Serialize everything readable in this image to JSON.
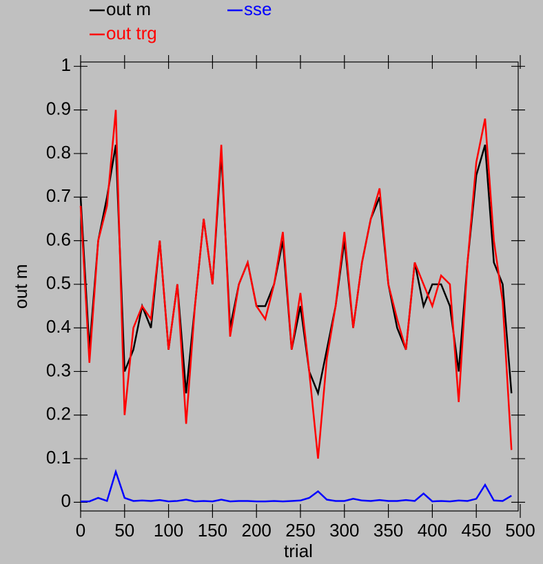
{
  "chart_data": {
    "type": "line",
    "x_label": "trial",
    "y_label": "out m",
    "x": [
      0,
      10,
      20,
      30,
      40,
      50,
      60,
      70,
      80,
      90,
      100,
      110,
      120,
      130,
      140,
      150,
      160,
      170,
      180,
      190,
      200,
      210,
      220,
      230,
      240,
      250,
      260,
      270,
      280,
      290,
      300,
      310,
      320,
      330,
      340,
      350,
      360,
      370,
      380,
      390,
      400,
      410,
      420,
      430,
      440,
      450,
      460,
      470,
      480,
      490
    ],
    "series": [
      {
        "name": "out m",
        "color": "#000000",
        "values": [
          0.7,
          0.35,
          0.6,
          0.7,
          0.82,
          0.3,
          0.35,
          0.45,
          0.4,
          0.6,
          0.35,
          0.5,
          0.25,
          0.45,
          0.65,
          0.5,
          0.8,
          0.4,
          0.5,
          0.55,
          0.45,
          0.45,
          0.5,
          0.6,
          0.35,
          0.45,
          0.3,
          0.25,
          0.35,
          0.45,
          0.6,
          0.4,
          0.55,
          0.65,
          0.7,
          0.5,
          0.4,
          0.35,
          0.55,
          0.45,
          0.5,
          0.5,
          0.45,
          0.3,
          0.55,
          0.75,
          0.82,
          0.55,
          0.5,
          0.25
        ]
      },
      {
        "name": "sse",
        "color": "#0000ff",
        "values": [
          0.002,
          0.002,
          0.01,
          0.003,
          0.07,
          0.01,
          0.003,
          0.004,
          0.003,
          0.005,
          0.002,
          0.003,
          0.006,
          0.002,
          0.003,
          0.002,
          0.006,
          0.002,
          0.003,
          0.003,
          0.002,
          0.002,
          0.003,
          0.002,
          0.003,
          0.004,
          0.01,
          0.025,
          0.006,
          0.003,
          0.003,
          0.008,
          0.004,
          0.003,
          0.005,
          0.003,
          0.003,
          0.005,
          0.003,
          0.02,
          0.002,
          0.003,
          0.002,
          0.004,
          0.003,
          0.008,
          0.04,
          0.004,
          0.003,
          0.015
        ]
      },
      {
        "name": "out trg",
        "color": "#ff0000",
        "values": [
          0.68,
          0.32,
          0.6,
          0.68,
          0.9,
          0.2,
          0.4,
          0.45,
          0.42,
          0.6,
          0.35,
          0.5,
          0.18,
          0.45,
          0.65,
          0.5,
          0.82,
          0.38,
          0.5,
          0.55,
          0.45,
          0.42,
          0.5,
          0.62,
          0.35,
          0.48,
          0.3,
          0.1,
          0.33,
          0.45,
          0.62,
          0.4,
          0.55,
          0.65,
          0.72,
          0.5,
          0.42,
          0.35,
          0.55,
          0.5,
          0.45,
          0.52,
          0.5,
          0.23,
          0.55,
          0.78,
          0.88,
          0.6,
          0.46,
          0.12
        ]
      }
    ],
    "xlim": [
      0,
      500
    ],
    "ylim": [
      -0.02,
      1.01
    ],
    "xticks": [
      0,
      50,
      100,
      150,
      200,
      250,
      300,
      350,
      400,
      450,
      500
    ],
    "yticks": [
      0,
      0.1,
      0.2,
      0.3,
      0.4,
      0.5,
      0.6,
      0.7,
      0.8,
      0.9,
      1
    ],
    "grid": false
  }
}
